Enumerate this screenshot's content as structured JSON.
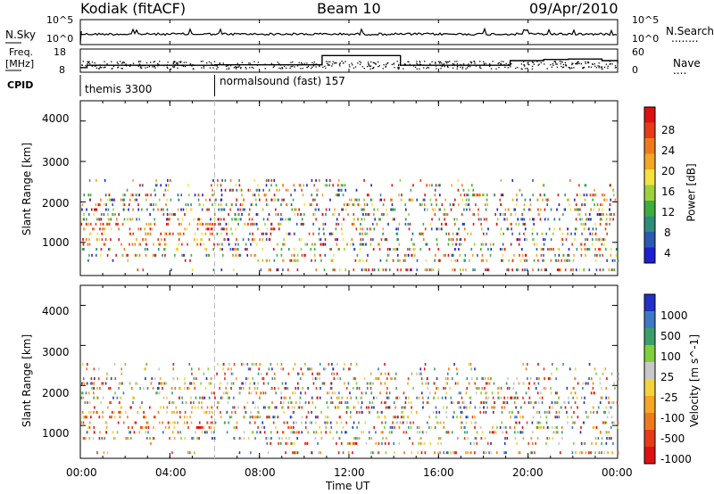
{
  "header": {
    "station": "Kodiak (fitACF)",
    "beam": "Beam 10",
    "date": "09/Apr/2010"
  },
  "nsky_panel": {
    "label": "N.Sky",
    "left_ticks": [
      "10^5",
      "10^0"
    ],
    "right_ticks": [
      "10^5",
      "10^0"
    ],
    "right_label": "N.Search",
    "right_dotted": "........"
  },
  "freq_panel": {
    "label_line1": "Freq.",
    "label_line2": "[MHz]",
    "left_ticks": [
      "18",
      "8"
    ],
    "right_ticks": [
      "60",
      "0"
    ],
    "right_label": "Nave",
    "right_dotted": "...."
  },
  "cpid_panel": {
    "label": "CPID",
    "segments": [
      {
        "name": "themis 3300",
        "start": 0.0,
        "end": 6.0
      },
      {
        "name": "normalsound (fast) 157",
        "start": 6.0,
        "end": 24.0
      }
    ]
  },
  "x_axis": {
    "label": "Time UT",
    "ticks": [
      "00:00",
      "04:00",
      "08:00",
      "12:00",
      "16:00",
      "20:00",
      "00:00"
    ],
    "tick_hours": [
      0,
      4,
      8,
      12,
      16,
      20,
      24
    ]
  },
  "power_panel": {
    "ylabel": "Slant Range [km]",
    "yticks": [
      "1000",
      "2000",
      "3000",
      "4000"
    ],
    "colorbar_label": "Power [dB]",
    "colorbar_ticks": [
      "28",
      "24",
      "20",
      "16",
      "12",
      "8",
      "4"
    ],
    "colors": [
      "#1e1ed6",
      "#2a5ab4",
      "#2f8c7a",
      "#3dae3d",
      "#9bd23c",
      "#f6e23c",
      "#f5a623",
      "#f07a1a",
      "#e83a16",
      "#e01010"
    ]
  },
  "velocity_panel": {
    "ylabel": "Slant Range [km]",
    "yticks": [
      "1000",
      "2000",
      "3000",
      "4000"
    ],
    "colorbar_label": "Velocity [m s^-1]",
    "colorbar_ticks": [
      "1000",
      "500",
      "100",
      "25",
      "-25",
      "-100",
      "-500",
      "-1000"
    ],
    "colors": [
      "#2030c8",
      "#3c7ac8",
      "#3aa06a",
      "#7fd03c",
      "#c8c8c8",
      "#f5d23c",
      "#f5a623",
      "#f07a1a",
      "#e83a16",
      "#e01010"
    ]
  },
  "chart_data": [
    {
      "type": "line",
      "title": "N.Sky / N.Search",
      "x_range_hours": [
        0,
        24
      ],
      "series": [
        {
          "name": "N.Sky",
          "level": "approximately constant near 10^5 after 00:00"
        }
      ]
    },
    {
      "type": "line",
      "title": "Frequency / Nave",
      "x_range_hours": [
        0,
        24
      ],
      "ylim_left_mhz": [
        8,
        18
      ],
      "ylim_right": [
        0,
        60
      ],
      "series": [
        {
          "name": "Freq.",
          "x": [
            0.0,
            0.3,
            6.0,
            10.8,
            14.3,
            19.2,
            20.7,
            21.8,
            23.3,
            24.0
          ],
          "y": [
            10.0,
            11.0,
            11.2,
            15.2,
            11.0,
            13.0,
            13.5,
            13.7,
            13.0,
            12.5
          ]
        }
      ]
    },
    {
      "type": "scatter",
      "title": "Power",
      "xlabel": "Time UT",
      "ylabel": "Slant Range [km]",
      "x_range_hours": [
        0,
        24
      ],
      "ylim_km": [
        180,
        4500
      ],
      "range_gate_bands_km": [
        320,
        550,
        680,
        830,
        950,
        1070,
        1210,
        1330,
        1450,
        1570,
        1690,
        1810,
        1930,
        2050,
        2170,
        2290,
        2410,
        2530
      ],
      "color_scale_db": [
        0,
        32
      ]
    },
    {
      "type": "scatter",
      "title": "Velocity",
      "xlabel": "Time UT",
      "ylabel": "Slant Range [km]",
      "x_range_hours": [
        0,
        24
      ],
      "ylim_km": [
        180,
        4500
      ],
      "color_scale_mps": [
        -1000,
        1000
      ]
    }
  ]
}
